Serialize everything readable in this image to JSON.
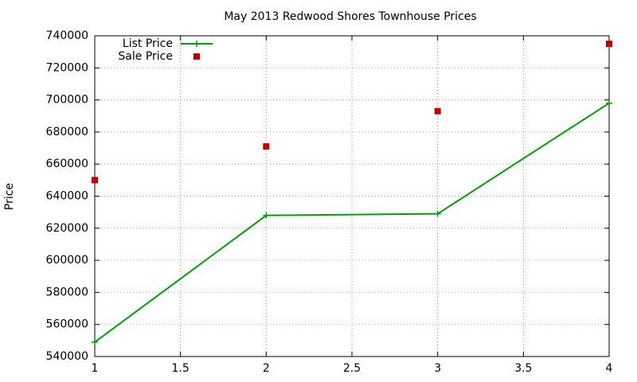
{
  "chart_data": {
    "type": "line",
    "title": "May 2013 Redwood Shores Townhouse Prices",
    "y_label": "Price",
    "x": [
      1,
      2,
      3,
      4
    ],
    "series": [
      {
        "name": "List Price",
        "color": "#00a000",
        "mode": "lines+markers",
        "marker": "plus",
        "values": [
          549000,
          628000,
          629000,
          698000
        ]
      },
      {
        "name": "Sale Price",
        "color": "#c00000",
        "mode": "markers",
        "marker": "square",
        "values": [
          650000,
          671000,
          693000,
          735000
        ]
      }
    ],
    "xlim": [
      1,
      4
    ],
    "xticks": [
      1,
      1.5,
      2,
      2.5,
      3,
      3.5,
      4
    ],
    "ylim": [
      540000,
      740000
    ],
    "yticks": [
      540000,
      560000,
      580000,
      600000,
      620000,
      640000,
      660000,
      680000,
      700000,
      720000,
      740000
    ],
    "grid": true,
    "legend": "top-left"
  }
}
